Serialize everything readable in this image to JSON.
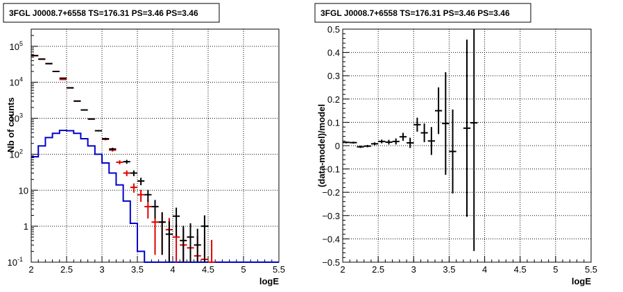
{
  "chart_data": [
    {
      "type": "histogram",
      "title": "3FGL J0008.7+6558 TS=176.31 PS=3.46 PS=3.46",
      "xlabel": "logE",
      "ylabel": "Nb of counts",
      "xlim": [
        2,
        5.5
      ],
      "ylim": [
        0.1,
        300000
      ],
      "yscale": "log",
      "grid": true,
      "x_ticks": [
        "2",
        "2.5",
        "3",
        "3.5",
        "4",
        "4.5",
        "5",
        "5.5"
      ],
      "y_ticks": [
        {
          "base": "10",
          "exp": "-1",
          "v": 0.1,
          "plain": "10^-1"
        },
        {
          "base": "1",
          "exp": "",
          "v": 1,
          "plain": "1"
        },
        {
          "base": "10",
          "exp": "",
          "v": 10,
          "plain": "10"
        },
        {
          "base": "10",
          "exp": "2",
          "v": 100,
          "plain": "10^2"
        },
        {
          "base": "10",
          "exp": "3",
          "v": 1000,
          "plain": "10^3"
        },
        {
          "base": "10",
          "exp": "4",
          "v": 10000,
          "plain": "10^4"
        },
        {
          "base": "10",
          "exp": "5",
          "v": 100000,
          "plain": "10^5"
        }
      ],
      "bin_centers": [
        2.05,
        2.15,
        2.25,
        2.35,
        2.45,
        2.55,
        2.65,
        2.75,
        2.85,
        2.95,
        3.05,
        3.15,
        3.25,
        3.35,
        3.45,
        3.55,
        3.65,
        3.75,
        3.85,
        3.95,
        4.05,
        4.15,
        4.25,
        4.35,
        4.45,
        4.55
      ],
      "series": [
        {
          "color": "#000000",
          "style": "points-with-errors",
          "values": [
            55000,
            44000,
            33000,
            20000,
            13000,
            7000,
            3000,
            1700,
            950,
            450,
            270,
            140,
            62,
            30,
            18,
            7.5,
            3.5,
            1.3,
            1.9,
            0.6,
            0.4,
            0.5,
            1,
            0.3
          ],
          "x": [
            2.05,
            2.15,
            2.25,
            2.35,
            2.45,
            2.55,
            2.65,
            2.75,
            2.85,
            2.95,
            3.05,
            3.15,
            3.35,
            3.45,
            3.55,
            3.65,
            3.75,
            3.85,
            4.05,
            3.95,
            4.15,
            4.25,
            4.45,
            4.35
          ]
        },
        {
          "color": "#e00000",
          "style": "points-with-errors",
          "values": [
            55000,
            44000,
            33000,
            20000,
            12000,
            7000,
            3000,
            1700,
            950,
            450,
            260,
            130,
            60,
            30,
            12,
            7.5,
            3.5,
            1.3,
            1.3,
            0.8,
            0.5,
            0.3,
            0.25,
            0.15,
            0.12,
            0.1
          ],
          "x": [
            2.05,
            2.15,
            2.25,
            2.35,
            2.45,
            2.55,
            2.65,
            2.75,
            2.85,
            2.95,
            3.05,
            3.15,
            3.25,
            3.35,
            3.45,
            3.55,
            3.65,
            3.75,
            3.85,
            3.95,
            4.05,
            4.15,
            4.25,
            4.35,
            4.45,
            4.55
          ]
        },
        {
          "color": "#0000cc",
          "style": "step",
          "edges": [
            2.0,
            2.1,
            2.2,
            2.3,
            2.4,
            2.5,
            2.6,
            2.7,
            2.8,
            2.9,
            3.0,
            3.1,
            3.2,
            3.3,
            3.4,
            3.5,
            3.6,
            3.7,
            3.8,
            3.9,
            4.0,
            5.5
          ],
          "values": [
            85,
            170,
            290,
            380,
            460,
            450,
            380,
            270,
            170,
            100,
            57,
            30,
            14,
            5,
            1.2,
            0.2,
            0.1,
            0.1,
            0.1,
            0.1,
            0.1
          ]
        }
      ]
    },
    {
      "type": "scatter",
      "title": "3FGL J0008.7+6558 TS=176.31 PS=3.46 PS=3.46",
      "xlabel": "logE",
      "ylabel": "(data-model)/model",
      "xlim": [
        2,
        5.5
      ],
      "ylim": [
        -0.5,
        0.5
      ],
      "grid": true,
      "x_ticks": [
        "2",
        "2.5",
        "3",
        "3.5",
        "4",
        "4.5",
        "5",
        "5.5"
      ],
      "y_ticks": [
        "−0.5",
        "−0.4",
        "−0.3",
        "−0.2",
        "−0.1",
        "0",
        "0.1",
        "0.2",
        "0.3",
        "0.4",
        "0.5"
      ],
      "points": [
        {
          "x": 2.05,
          "y": 0.014,
          "err": 0.004
        },
        {
          "x": 2.15,
          "y": 0.013,
          "err": 0.004
        },
        {
          "x": 2.25,
          "y": -0.005,
          "err": 0.005
        },
        {
          "x": 2.35,
          "y": -0.002,
          "err": 0.005
        },
        {
          "x": 2.45,
          "y": 0.008,
          "err": 0.006
        },
        {
          "x": 2.55,
          "y": 0.018,
          "err": 0.008
        },
        {
          "x": 2.65,
          "y": 0.015,
          "err": 0.01
        },
        {
          "x": 2.75,
          "y": 0.018,
          "err": 0.013
        },
        {
          "x": 2.85,
          "y": 0.038,
          "err": 0.017
        },
        {
          "x": 2.95,
          "y": 0.012,
          "err": 0.022
        },
        {
          "x": 3.05,
          "y": 0.09,
          "err": 0.03
        },
        {
          "x": 3.15,
          "y": 0.055,
          "err": 0.04
        },
        {
          "x": 3.25,
          "y": 0.02,
          "err": 0.06
        },
        {
          "x": 3.35,
          "y": 0.15,
          "err": 0.1
        },
        {
          "x": 3.45,
          "y": 0.095,
          "err": 0.22
        },
        {
          "x": 3.55,
          "y": -0.025,
          "err": 0.18
        },
        {
          "x": 3.75,
          "y": 0.075,
          "err": 0.38
        },
        {
          "x": 3.85,
          "y": 0.098,
          "err": 0.55
        }
      ]
    }
  ]
}
